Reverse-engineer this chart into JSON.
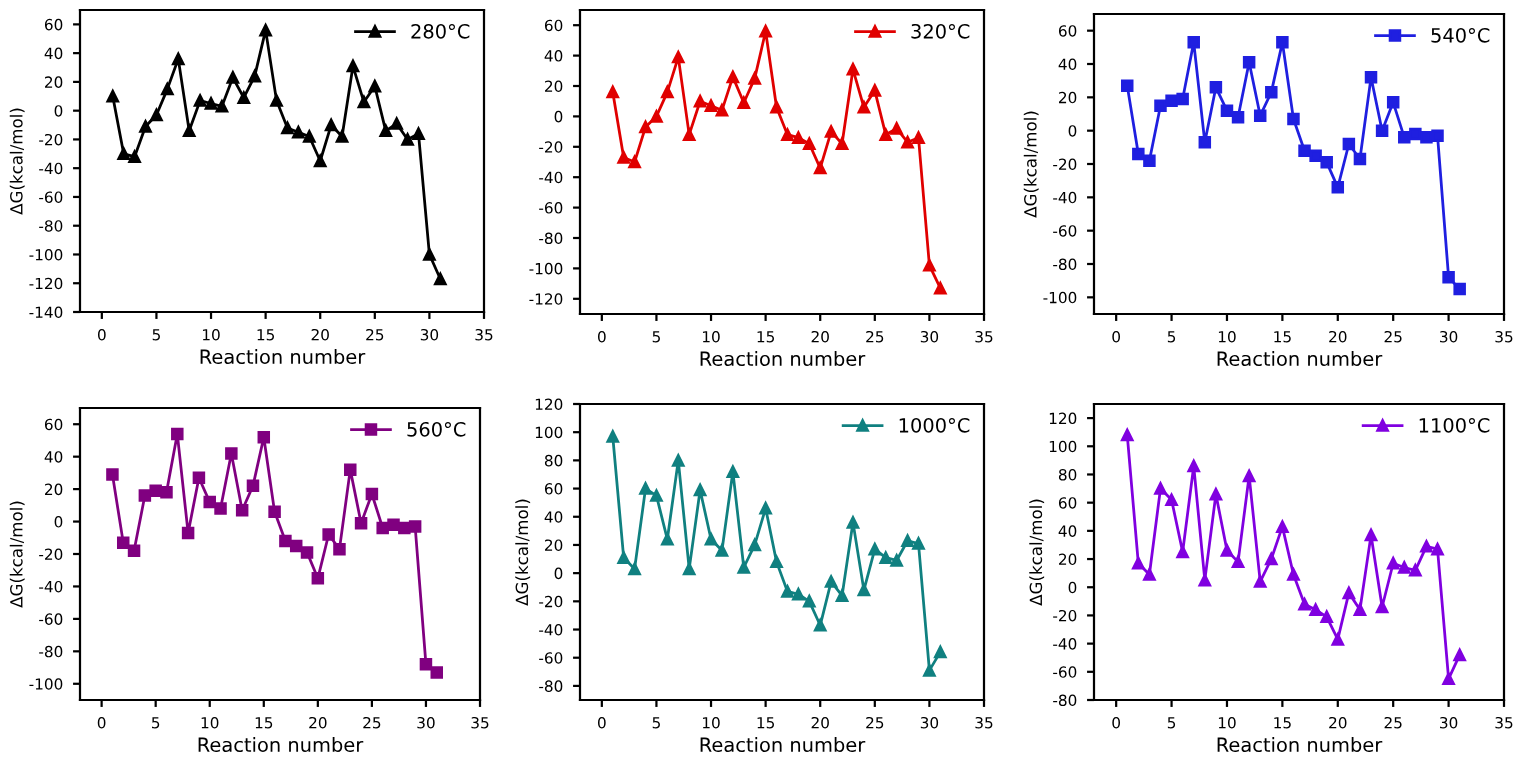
{
  "chart_data": [
    {
      "type": "line",
      "xlabel": "Reaction number",
      "ylabel": "ΔG(kcal/mol)",
      "x": [
        1,
        2,
        3,
        4,
        5,
        6,
        7,
        8,
        9,
        10,
        11,
        12,
        13,
        14,
        15,
        16,
        17,
        18,
        19,
        20,
        21,
        22,
        23,
        24,
        25,
        26,
        27,
        28,
        29,
        30,
        31
      ],
      "xlim": [
        -2,
        35
      ],
      "xticks": [
        0,
        5,
        10,
        15,
        20,
        25,
        30,
        35
      ],
      "ylim": [
        -140,
        70
      ],
      "yticks": [
        -140,
        -120,
        -100,
        -80,
        -60,
        -40,
        -20,
        0,
        20,
        40,
        60
      ],
      "marker": "triangle",
      "legend": "top right",
      "grid": false,
      "series": [
        {
          "name": "280°C",
          "color": "#000000",
          "values": [
            10,
            -30,
            -32,
            -11,
            -3,
            15,
            36,
            -14,
            7,
            5,
            3,
            23,
            9,
            24,
            56,
            7,
            -12,
            -15,
            -18,
            -35,
            -10,
            -18,
            31,
            6,
            17,
            -14,
            -9,
            -20,
            -16,
            -100,
            -117
          ]
        }
      ]
    },
    {
      "type": "line",
      "xlabel": "Reaction number",
      "x": [
        1,
        2,
        3,
        4,
        5,
        6,
        7,
        8,
        9,
        10,
        11,
        12,
        13,
        14,
        15,
        16,
        17,
        18,
        19,
        20,
        21,
        22,
        23,
        24,
        25,
        26,
        27,
        28,
        29,
        30,
        31
      ],
      "xlim": [
        -2,
        35
      ],
      "xticks": [
        0,
        5,
        10,
        15,
        20,
        25,
        30,
        35
      ],
      "ylim": [
        -130,
        70
      ],
      "yticks": [
        -120,
        -100,
        -80,
        -60,
        -40,
        -20,
        0,
        20,
        40,
        60
      ],
      "marker": "triangle",
      "legend": "top right",
      "grid": false,
      "series": [
        {
          "name": "320°C",
          "color": "#e00000",
          "values": [
            16,
            -27,
            -30,
            -7,
            0,
            16,
            39,
            -12,
            10,
            7,
            4,
            26,
            9,
            25,
            56,
            6,
            -12,
            -14,
            -18,
            -34,
            -10,
            -18,
            31,
            6,
            17,
            -12,
            -8,
            -17,
            -14,
            -98,
            -113
          ]
        }
      ]
    },
    {
      "type": "line",
      "xlabel": "Reaction number",
      "ylabel": "ΔG(kcal/mol)",
      "x": [
        1,
        2,
        3,
        4,
        5,
        6,
        7,
        8,
        9,
        10,
        11,
        12,
        13,
        14,
        15,
        16,
        17,
        18,
        19,
        20,
        21,
        22,
        23,
        24,
        25,
        26,
        27,
        28,
        29,
        30,
        31
      ],
      "xlim": [
        -2,
        35
      ],
      "xticks": [
        0,
        5,
        10,
        15,
        20,
        25,
        30,
        35
      ],
      "ylim": [
        -110,
        70
      ],
      "yticks": [
        -100,
        -80,
        -60,
        -40,
        -20,
        0,
        20,
        40,
        60
      ],
      "marker": "square",
      "legend": "top right",
      "grid": false,
      "series": [
        {
          "name": "540°C",
          "color": "#1f1fe0",
          "values": [
            27,
            -14,
            -18,
            15,
            18,
            19,
            53,
            -7,
            26,
            12,
            8,
            41,
            9,
            23,
            53,
            7,
            -12,
            -15,
            -19,
            -34,
            -8,
            -17,
            32,
            0,
            17,
            -4,
            -2,
            -4,
            -3,
            -88,
            -95
          ]
        }
      ]
    },
    {
      "type": "line",
      "xlabel": "Reaction number",
      "ylabel": "ΔG(kcal/mol)",
      "x": [
        1,
        2,
        3,
        4,
        5,
        6,
        7,
        8,
        9,
        10,
        11,
        12,
        13,
        14,
        15,
        16,
        17,
        18,
        19,
        20,
        21,
        22,
        23,
        24,
        25,
        26,
        27,
        28,
        29,
        30,
        31
      ],
      "xlim": [
        -2,
        35
      ],
      "xticks": [
        0,
        5,
        10,
        15,
        20,
        25,
        30,
        35
      ],
      "ylim": [
        -110,
        70
      ],
      "yticks": [
        -100,
        -80,
        -60,
        -40,
        -20,
        0,
        20,
        40,
        60
      ],
      "marker": "square",
      "legend": "top right",
      "grid": false,
      "series": [
        {
          "name": "560°C",
          "color": "#800080",
          "values": [
            29,
            -13,
            -18,
            16,
            19,
            18,
            54,
            -7,
            27,
            12,
            8,
            42,
            7,
            22,
            52,
            6,
            -12,
            -15,
            -19,
            -35,
            -8,
            -17,
            32,
            -1,
            17,
            -4,
            -2,
            -4,
            -3,
            -88,
            -93
          ]
        }
      ]
    },
    {
      "type": "line",
      "xlabel": "Reaction number",
      "ylabel": "ΔG(kcal/mol)",
      "x": [
        1,
        2,
        3,
        4,
        5,
        6,
        7,
        8,
        9,
        10,
        11,
        12,
        13,
        14,
        15,
        16,
        17,
        18,
        19,
        20,
        21,
        22,
        23,
        24,
        25,
        26,
        27,
        28,
        29,
        30,
        31
      ],
      "xlim": [
        -2,
        35
      ],
      "xticks": [
        0,
        5,
        10,
        15,
        20,
        25,
        30,
        35
      ],
      "ylim": [
        -90,
        120
      ],
      "yticks": [
        -80,
        -60,
        -40,
        -20,
        0,
        20,
        40,
        60,
        80,
        100,
        120
      ],
      "marker": "triangle",
      "legend": "top right",
      "grid": false,
      "series": [
        {
          "name": "1000°C",
          "color": "#108080",
          "values": [
            97,
            11,
            3,
            60,
            55,
            24,
            80,
            3,
            59,
            24,
            16,
            72,
            4,
            20,
            46,
            8,
            -13,
            -15,
            -20,
            -37,
            -6,
            -16,
            36,
            -12,
            17,
            11,
            9,
            23,
            21,
            -69,
            -56
          ]
        }
      ]
    },
    {
      "type": "line",
      "xlabel": "Reaction number",
      "ylabel": "ΔG(kcal/mol)",
      "x": [
        1,
        2,
        3,
        4,
        5,
        6,
        7,
        8,
        9,
        10,
        11,
        12,
        13,
        14,
        15,
        16,
        17,
        18,
        19,
        20,
        21,
        22,
        23,
        24,
        25,
        26,
        27,
        28,
        29,
        30,
        31
      ],
      "xlim": [
        -2,
        35
      ],
      "xticks": [
        0,
        5,
        10,
        15,
        20,
        25,
        30,
        35
      ],
      "ylim": [
        -80,
        130
      ],
      "yticks": [
        -80,
        -60,
        -40,
        -20,
        0,
        20,
        40,
        60,
        80,
        100,
        120
      ],
      "marker": "triangle",
      "legend": "top right",
      "grid": false,
      "series": [
        {
          "name": "1100°C",
          "color": "#8000e0",
          "values": [
            108,
            17,
            9,
            70,
            62,
            25,
            86,
            5,
            66,
            26,
            18,
            79,
            4,
            20,
            43,
            9,
            -12,
            -16,
            -21,
            -37,
            -4,
            -16,
            37,
            -14,
            17,
            14,
            12,
            29,
            27,
            -65,
            -48
          ]
        }
      ]
    }
  ]
}
